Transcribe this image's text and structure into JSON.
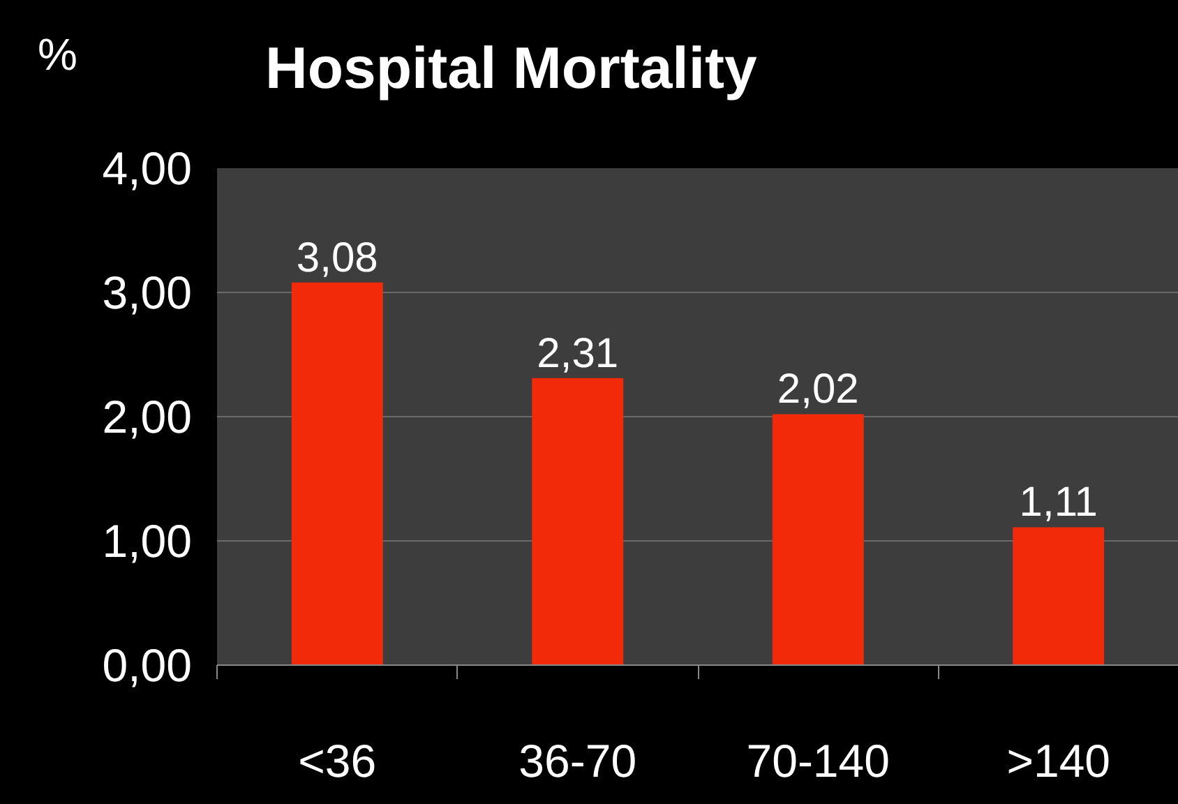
{
  "chart_data": {
    "type": "bar",
    "title": "Hospital Mortality",
    "ylabel": "%",
    "categories": [
      "<36",
      "36-70",
      "70-140",
      ">140"
    ],
    "values": [
      3.08,
      2.31,
      2.02,
      1.11
    ],
    "value_labels": [
      "3,08",
      "2,31",
      "2,02",
      "1,11"
    ],
    "color": "#f22a0a",
    "ylim": [
      0,
      4
    ],
    "yticks": [
      {
        "value": 0,
        "label": "0,00"
      },
      {
        "value": 1,
        "label": "1,00"
      },
      {
        "value": 2,
        "label": "2,00"
      },
      {
        "value": 3,
        "label": "3,00"
      },
      {
        "value": 4,
        "label": "4,00"
      }
    ],
    "grid": "y"
  }
}
